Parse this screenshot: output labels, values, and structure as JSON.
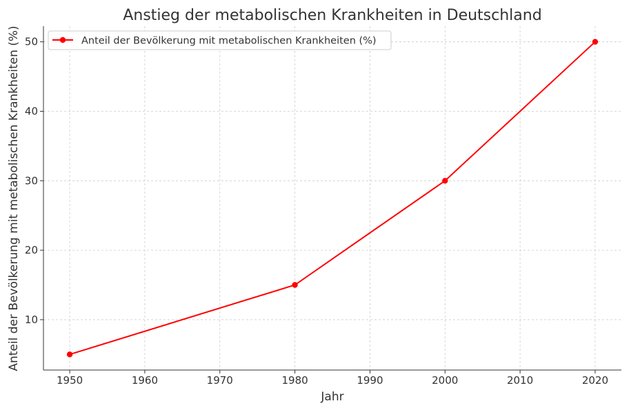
{
  "chart_data": {
    "type": "line",
    "title": "Anstieg der metabolischen Krankheiten in Deutschland",
    "xlabel": "Jahr",
    "ylabel": "Anteil der Bevölkerung mit metabolischen Krankheiten (%)",
    "x": [
      1950,
      1980,
      2000,
      2020
    ],
    "series": [
      {
        "name": "Anteil der Bevölkerung mit metabolischen Krankheiten (%)",
        "values": [
          5,
          15,
          30,
          50
        ],
        "color": "#ff0000",
        "marker": "circle"
      }
    ],
    "xlim": [
      1946.5,
      2023.5
    ],
    "ylim": [
      2.75,
      52.25
    ],
    "xticks": [
      1950,
      1960,
      1970,
      1980,
      1990,
      2000,
      2010,
      2020
    ],
    "yticks": [
      10,
      20,
      30,
      40,
      50
    ],
    "grid": true,
    "grid_style": "dashed",
    "legend_position": "top-left"
  }
}
